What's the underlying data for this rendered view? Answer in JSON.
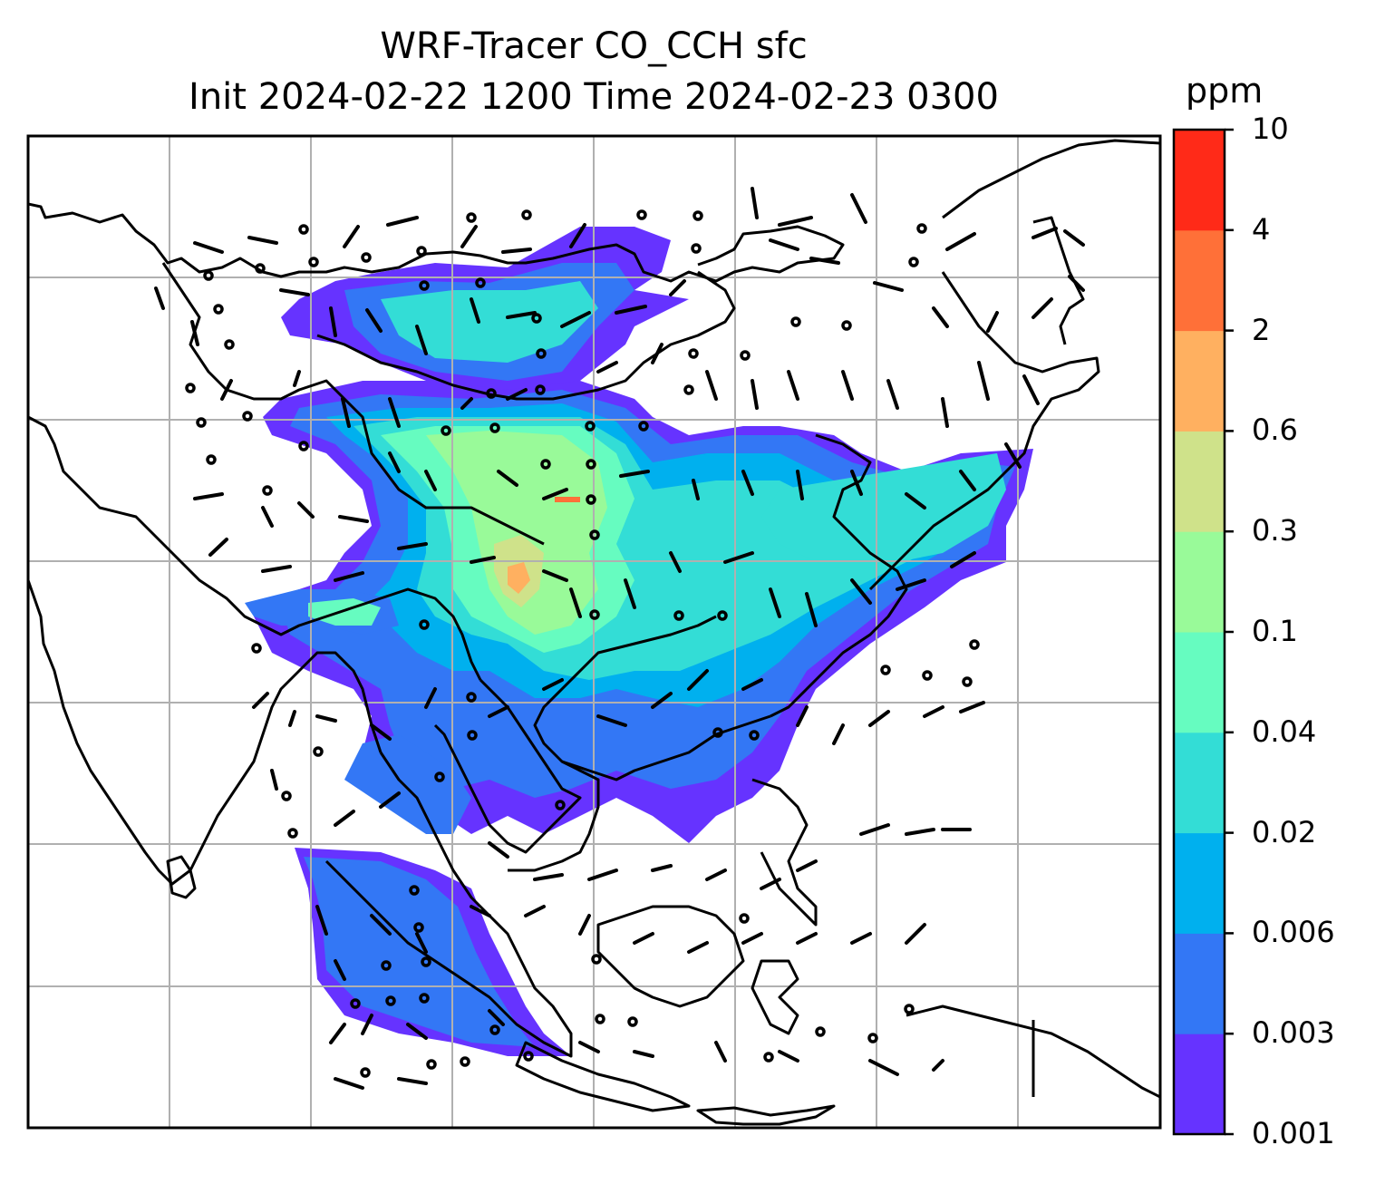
{
  "title": {
    "line1": "WRF-Tracer CO_CCH sfc",
    "line2": "Init 2024-02-22 1200 Time 2024-02-23 0300"
  },
  "colorbar": {
    "unit": "ppm",
    "levels": [
      "0.001",
      "0.003",
      "0.006",
      "0.02",
      "0.04",
      "0.1",
      "0.3",
      "0.6",
      "2",
      "4",
      "10"
    ],
    "colors": [
      "#6633ff",
      "#3377f5",
      "#00b0ee",
      "#33ddd6",
      "#66fcc0",
      "#99fa99",
      "#cfe28a",
      "#ffb060",
      "#ff7038",
      "#ff2a18"
    ]
  },
  "map": {
    "gridlines": true,
    "gridline_color": "#b0b0b0",
    "coastline_color": "#000000"
  }
}
